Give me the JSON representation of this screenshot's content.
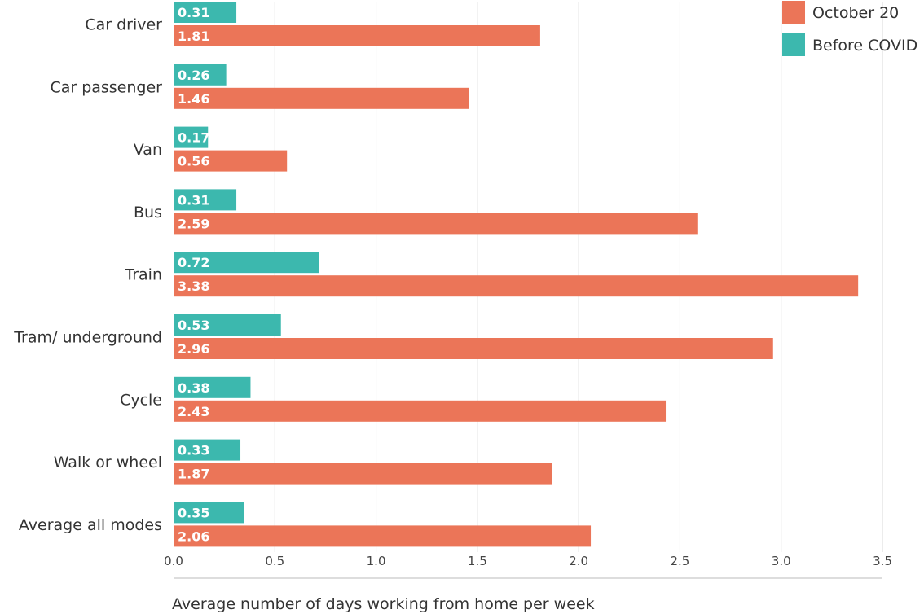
{
  "chart_data": {
    "type": "bar",
    "orientation": "horizontal",
    "categories": [
      "Car driver",
      "Car passenger",
      "Van",
      "Bus",
      "Train",
      "Tram/ underground",
      "Cycle",
      "Walk or wheel",
      "Average all modes"
    ],
    "series": [
      {
        "name": "Before COVID",
        "color": "#3cb8ae",
        "values": [
          0.31,
          0.26,
          0.17,
          0.31,
          0.72,
          0.53,
          0.38,
          0.33,
          0.35
        ]
      },
      {
        "name": "October 20",
        "color": "#eb7558",
        "values": [
          1.81,
          1.46,
          0.56,
          2.59,
          3.38,
          2.96,
          2.43,
          1.87,
          2.06
        ]
      }
    ],
    "title": "",
    "xlabel": "Average number of days working from home per week",
    "ylabel": "",
    "xlim": [
      0,
      3.5
    ],
    "xticks": [
      "0.0",
      "0.5",
      "1.0",
      "1.5",
      "2.0",
      "2.5",
      "3.0",
      "3.5"
    ],
    "grid": "vertical",
    "legend": {
      "placement": "top-right",
      "entries": [
        {
          "name": "October 20",
          "color": "#eb7558"
        },
        {
          "name": "Before COVID",
          "color": "#3cb8ae"
        }
      ]
    },
    "colors": {
      "grid": "#d9d9d9",
      "axis": "#bbbbbb",
      "bar_label": "#ffffff"
    }
  }
}
